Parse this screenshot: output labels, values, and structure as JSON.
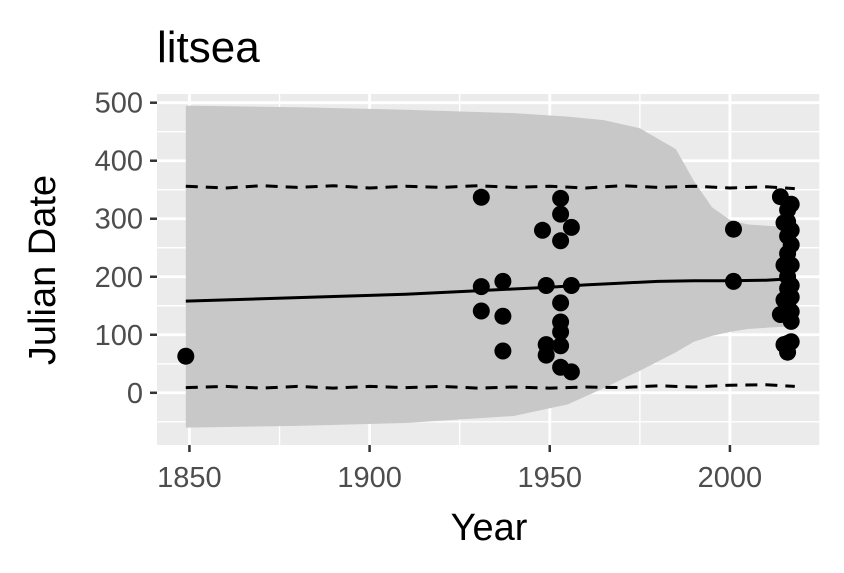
{
  "chart_data": {
    "type": "scatter",
    "title": "litsea",
    "xlabel": "Year",
    "ylabel": "Julian Date",
    "xlim": [
      1841,
      2025
    ],
    "ylim": [
      -90,
      515
    ],
    "x_ticks": [
      1850,
      1900,
      1950,
      2000
    ],
    "y_ticks": [
      0,
      100,
      200,
      300,
      400,
      500
    ],
    "grid": true,
    "legend": "none",
    "colors": {
      "panel": "#ebebeb",
      "grid": "#ffffff",
      "points": "#000000",
      "ribbon": "#c8c8c8",
      "line": "#000000",
      "tick_label": "#4d4d4d",
      "tick_mark": "#333333"
    },
    "points": [
      [
        1849,
        63
      ],
      [
        1931,
        337
      ],
      [
        1931,
        183
      ],
      [
        1931,
        141
      ],
      [
        1937,
        192
      ],
      [
        1937,
        132
      ],
      [
        1937,
        72
      ],
      [
        1948,
        280
      ],
      [
        1949,
        185
      ],
      [
        1949,
        83
      ],
      [
        1949,
        65
      ],
      [
        1953,
        335
      ],
      [
        1953,
        308
      ],
      [
        1953,
        262
      ],
      [
        1953,
        155
      ],
      [
        1953,
        122
      ],
      [
        1953,
        105
      ],
      [
        1953,
        81
      ],
      [
        1953,
        44
      ],
      [
        1956,
        285
      ],
      [
        1956,
        185
      ],
      [
        1956,
        36
      ],
      [
        2001,
        282
      ],
      [
        2001,
        192
      ],
      [
        2014,
        338
      ],
      [
        2014,
        135
      ],
      [
        2015,
        293
      ],
      [
        2015,
        220
      ],
      [
        2015,
        160
      ],
      [
        2015,
        83
      ],
      [
        2016,
        315
      ],
      [
        2016,
        295
      ],
      [
        2016,
        270
      ],
      [
        2016,
        240
      ],
      [
        2016,
        200
      ],
      [
        2016,
        180
      ],
      [
        2016,
        150
      ],
      [
        2016,
        85
      ],
      [
        2016,
        70
      ],
      [
        2017,
        325
      ],
      [
        2017,
        280
      ],
      [
        2017,
        255
      ],
      [
        2017,
        220
      ],
      [
        2017,
        185
      ],
      [
        2017,
        165
      ],
      [
        2017,
        140
      ],
      [
        2017,
        123
      ],
      [
        2017,
        88
      ]
    ],
    "fit_line": {
      "x": [
        1849,
        1870,
        1890,
        1910,
        1930,
        1950,
        1960,
        1970,
        1980,
        1990,
        2000,
        2010,
        2018
      ],
      "y": [
        158,
        162,
        166,
        170,
        176,
        182,
        186,
        189,
        192,
        193,
        193,
        194,
        197
      ]
    },
    "ribbon": {
      "x": [
        1849,
        1880,
        1910,
        1940,
        1955,
        1965,
        1975,
        1985,
        1990,
        1995,
        2000,
        2005,
        2010,
        2018
      ],
      "upper": [
        495,
        492,
        488,
        482,
        476,
        470,
        456,
        420,
        365,
        320,
        298,
        290,
        288,
        285
      ],
      "lower": [
        -60,
        -57,
        -52,
        -40,
        -20,
        8,
        38,
        70,
        88,
        98,
        105,
        110,
        112,
        115
      ]
    },
    "upper_dashed": {
      "x": [
        1849,
        1860,
        1870,
        1880,
        1890,
        1900,
        1910,
        1920,
        1930,
        1940,
        1950,
        1960,
        1970,
        1980,
        1990,
        2000,
        2010,
        2018
      ],
      "y": [
        356,
        353,
        357,
        354,
        357,
        353,
        356,
        354,
        357,
        354,
        356,
        353,
        357,
        354,
        356,
        353,
        355,
        352
      ]
    },
    "lower_dashed": {
      "x": [
        1849,
        1860,
        1870,
        1880,
        1890,
        1900,
        1910,
        1920,
        1930,
        1940,
        1950,
        1960,
        1970,
        1980,
        1990,
        2000,
        2010,
        2018
      ],
      "y": [
        9,
        11,
        8,
        11,
        8,
        11,
        9,
        11,
        8,
        10,
        8,
        10,
        9,
        12,
        10,
        13,
        14,
        11
      ]
    }
  }
}
